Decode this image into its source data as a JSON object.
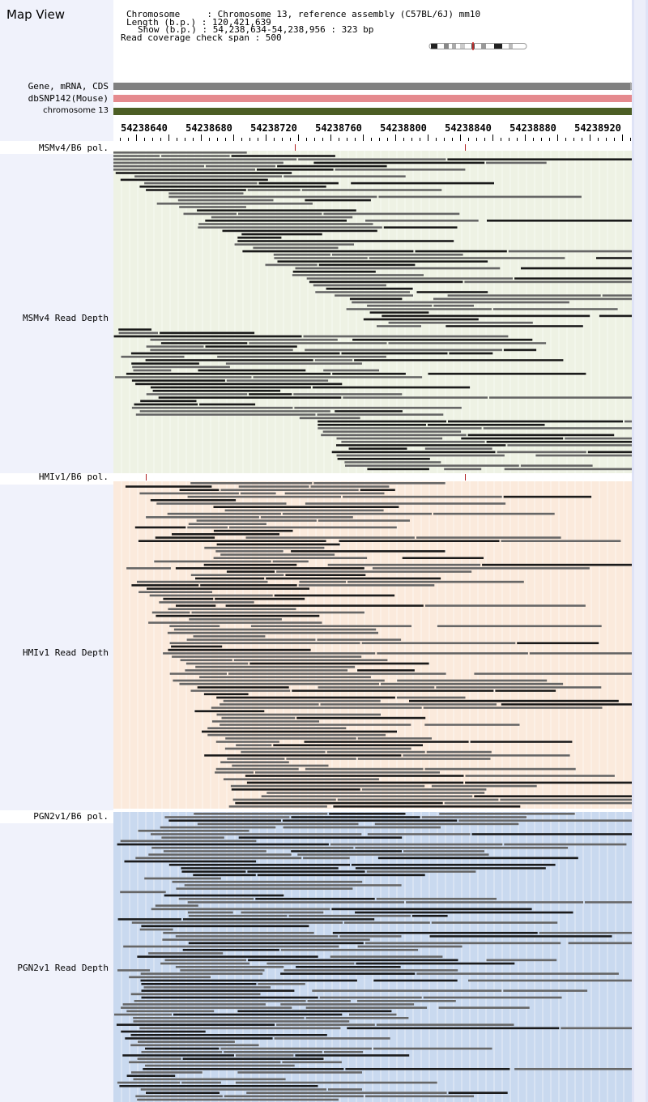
{
  "window_title": "Map View",
  "header": {
    "chromosome_line": "Chromosome     : Chromosome 13, reference assembly (C57BL/6J) mm10",
    "length_line": "Length (b.p.) : 120,421,639",
    "show_line": "Show (b.p.) : 54,238,634-54,238,956 : 323 bp",
    "coverage_line": "Read coverage check span : 500"
  },
  "ideogram_icon": "chromosome-ideogram-icon",
  "tracks": {
    "gene": {
      "label": "Gene, mRNA, CDS",
      "color": "#808080"
    },
    "snp": {
      "label": "dbSNP142(Mouse)",
      "color": "#e58a8e"
    },
    "chrom": {
      "label": "chromosome 13",
      "color": "#4c5e24"
    }
  },
  "scale": {
    "ticks": [
      "54238640",
      "54238680",
      "54238720",
      "54238760",
      "54238800",
      "54238840",
      "54238880",
      "54238920"
    ]
  },
  "panels": [
    {
      "pol_label": "MSMv4/B6 pol.",
      "depth_label": "MSMv4 Read Depth",
      "bg": "#eef2e4"
    },
    {
      "pol_label": "HMIv1/B6 pol.",
      "depth_label": "HMIv1 Read Depth",
      "bg": "#fbeadc"
    },
    {
      "pol_label": "PGN2v1/B6 pol.",
      "depth_label": "PGN2v1 Read Depth",
      "bg": "#c9d9ef"
    }
  ],
  "colors": {
    "read_dark": "#1a1a1a",
    "read_gray": "#666666",
    "polymorphism": "#b02020",
    "left_panel": "#f0f2fb"
  }
}
